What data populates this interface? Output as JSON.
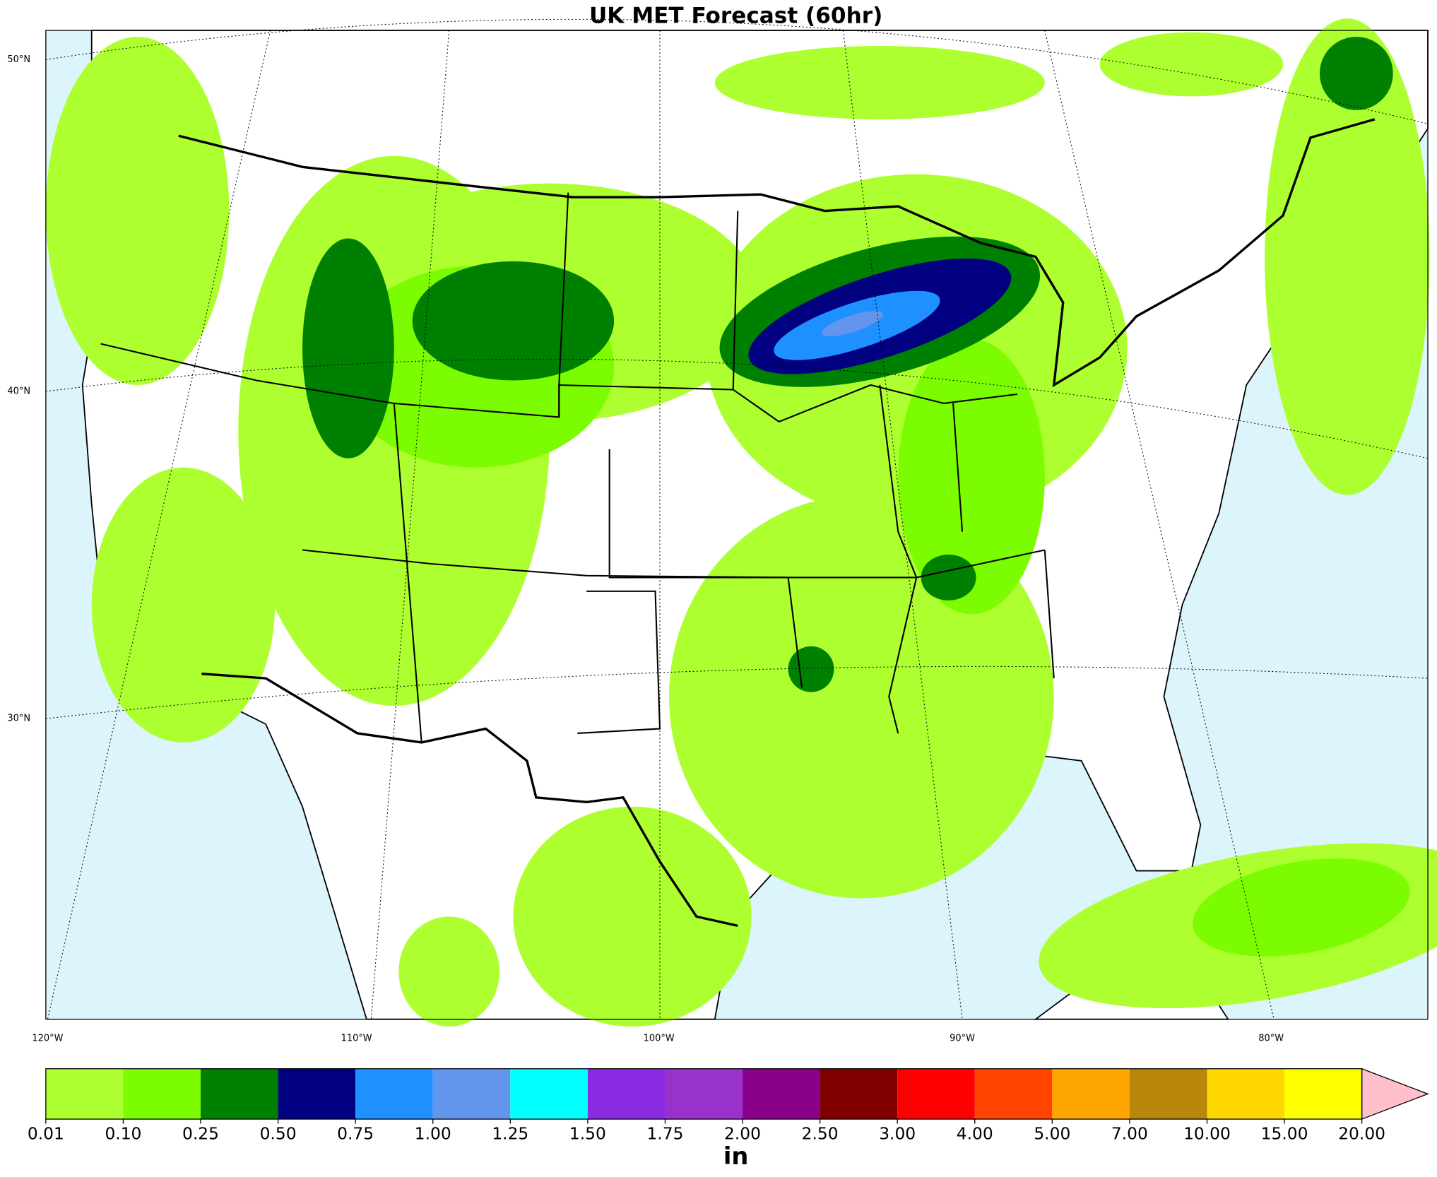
{
  "title": "UK MET Forecast (60hr)",
  "map": {
    "lat_labels": [
      "50°N",
      "40°N",
      "30°N"
    ],
    "lon_labels": [
      "120°W",
      "110°W",
      "100°W",
      "90°W",
      "80°W"
    ]
  },
  "colorbar": {
    "label": "in",
    "levels": [
      {
        "value": 0.01,
        "label": "0.01"
      },
      {
        "value": 0.1,
        "label": "0.10"
      },
      {
        "value": 0.25,
        "label": "0.25"
      },
      {
        "value": 0.5,
        "label": "0.50"
      },
      {
        "value": 0.75,
        "label": "0.75"
      },
      {
        "value": 1,
        "label": "1.00"
      },
      {
        "value": 1.25,
        "label": "1.25"
      },
      {
        "value": 1.5,
        "label": "1.50"
      },
      {
        "value": 1.75,
        "label": "1.75"
      },
      {
        "value": 2,
        "label": "2.00"
      },
      {
        "value": 2.5,
        "label": "2.50"
      },
      {
        "value": 3,
        "label": "3.00"
      },
      {
        "value": 4,
        "label": "4.00"
      },
      {
        "value": 5,
        "label": "5.00"
      },
      {
        "value": 7,
        "label": "7.00"
      },
      {
        "value": 10,
        "label": "10.00"
      },
      {
        "value": 15,
        "label": "15.00"
      },
      {
        "value": 20,
        "label": "20.00"
      }
    ],
    "colors": [
      "#adff2f",
      "#7cfc00",
      "#008000",
      "#000080",
      "#1e90ff",
      "#6495ed",
      "#00ffff",
      "#8a2be2",
      "#9932cc",
      "#8b008b",
      "#800000",
      "#ff0000",
      "#ff4500",
      "#ffa500",
      "#b8860b",
      "#ffd700",
      "#ffff00"
    ],
    "extend_color": "#ffc0cb"
  }
}
